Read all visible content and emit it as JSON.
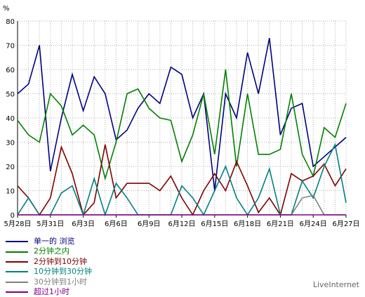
{
  "chart_data": {
    "type": "line",
    "ylabel": "%",
    "ylim": [
      0,
      80
    ],
    "yticks": [
      "0",
      "10",
      "20",
      "30",
      "40",
      "50",
      "60",
      "70",
      "80"
    ],
    "x": [
      "5月28日",
      "5月29日",
      "5月30日",
      "5月31日",
      "6月1日",
      "6月2日",
      "6月3日",
      "6月4日",
      "6月5日",
      "6月6日",
      "6月7日",
      "6月8日",
      "6月9日",
      "6月10日",
      "6月11日",
      "6月12日",
      "6月13日",
      "6月14日",
      "6月15日",
      "6月16日",
      "6月17日",
      "6月18日",
      "6月19日",
      "6月20日",
      "6月21日",
      "6月22日",
      "6月23日",
      "6月24日",
      "6月25日",
      "6月26日",
      "6月27日"
    ],
    "xtick_labels": [
      "5月28日",
      "5月31日",
      "6月3日",
      "6月6日",
      "6月9日",
      "6月12日",
      "6月15日",
      "6月18日",
      "6月21日",
      "6月24日",
      "6月27日"
    ],
    "grid": true,
    "series": [
      {
        "name": "单一的 浏览",
        "color": "#000080",
        "values": [
          50,
          54,
          70,
          18,
          40,
          58,
          43,
          57,
          50,
          31,
          35,
          44,
          50,
          46,
          61,
          58,
          40,
          50,
          10,
          50,
          40,
          67,
          50,
          73,
          33,
          44,
          46,
          20,
          24,
          28,
          32
        ]
      },
      {
        "name": "2分钟之内",
        "color": "#008000",
        "values": [
          39,
          33,
          30,
          50,
          45,
          33,
          37,
          33,
          15,
          30,
          50,
          52,
          44,
          40,
          39,
          22,
          33,
          50,
          25,
          60,
          20,
          50,
          25,
          25,
          27,
          50,
          25,
          16,
          36,
          32,
          46
        ]
      },
      {
        "name": "2分钟到10分钟",
        "color": "#800000",
        "values": [
          12,
          7,
          0,
          7,
          28,
          17,
          0,
          5,
          29,
          7,
          13,
          13,
          13,
          10,
          16,
          7,
          0,
          10,
          17,
          10,
          22,
          12,
          1,
          7,
          0,
          17,
          14,
          16,
          21,
          12,
          19
        ]
      },
      {
        "name": "10分钟到30分钟",
        "color": "#008080",
        "values": [
          0,
          7,
          0,
          0,
          9,
          12,
          0,
          15,
          0,
          13,
          7,
          0,
          0,
          0,
          0,
          12,
          7,
          0,
          10,
          20,
          7,
          0,
          7,
          19,
          0,
          0,
          14,
          7,
          20,
          29,
          5
        ]
      },
      {
        "name": "30分钟到1小时",
        "color": "#808080",
        "values": [
          0,
          0,
          0,
          0,
          0,
          0,
          0,
          0,
          0,
          0,
          0,
          0,
          0,
          0,
          0,
          0,
          0,
          0,
          0,
          0,
          0,
          0,
          0,
          0,
          0,
          0,
          7,
          8,
          0,
          0,
          0
        ]
      },
      {
        "name": "超过1小时",
        "color": "#800080",
        "values": [
          0,
          0,
          0,
          0,
          0,
          0,
          0,
          0,
          0,
          0,
          0,
          0,
          0,
          0,
          0,
          0,
          0,
          0,
          0,
          0,
          0,
          0,
          0,
          0,
          0,
          0,
          0,
          0,
          0,
          0,
          0
        ]
      }
    ]
  },
  "brand": "LiveInternet"
}
